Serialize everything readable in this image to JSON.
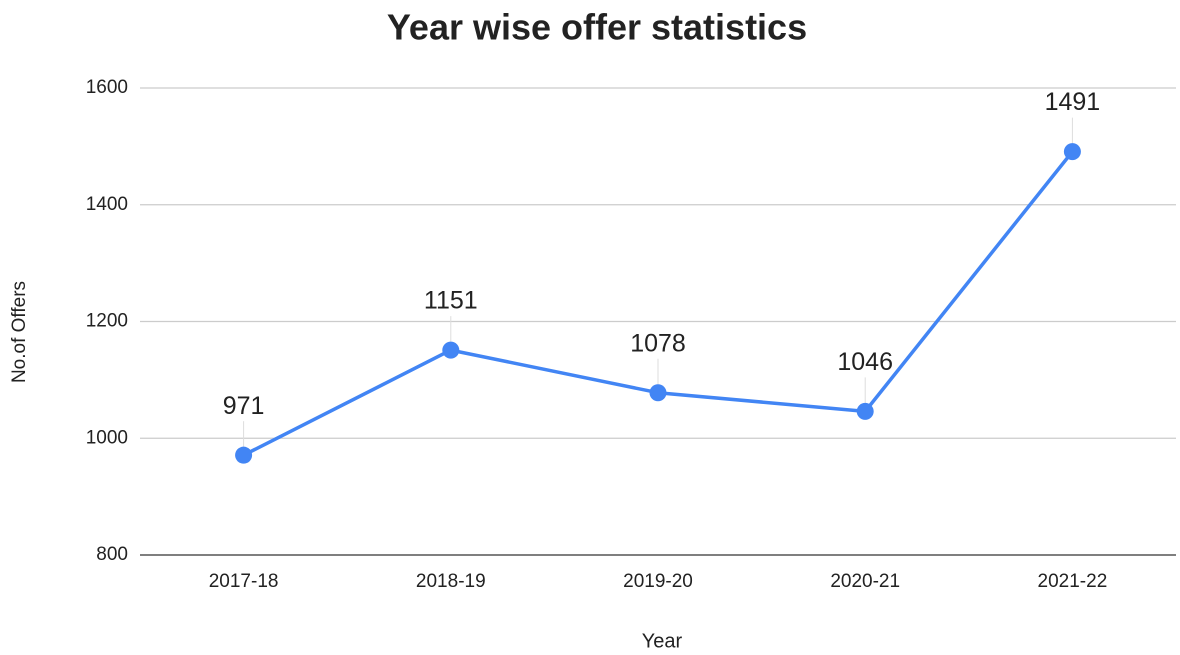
{
  "chart_data": {
    "type": "line",
    "title": "Year wise offer statistics",
    "x_label": "Year",
    "y_label": "No.of Offers",
    "categories": [
      "2017-18",
      "2018-19",
      "2019-20",
      "2020-21",
      "2021-22"
    ],
    "series": [
      {
        "name": "No.of Offers",
        "color": "#4285f4",
        "values": [
          971,
          1151,
          1078,
          1046,
          1491
        ]
      }
    ],
    "ylim": [
      800,
      1600
    ],
    "yticks": [
      800,
      1000,
      1200,
      1400,
      1600
    ],
    "grid": true
  }
}
